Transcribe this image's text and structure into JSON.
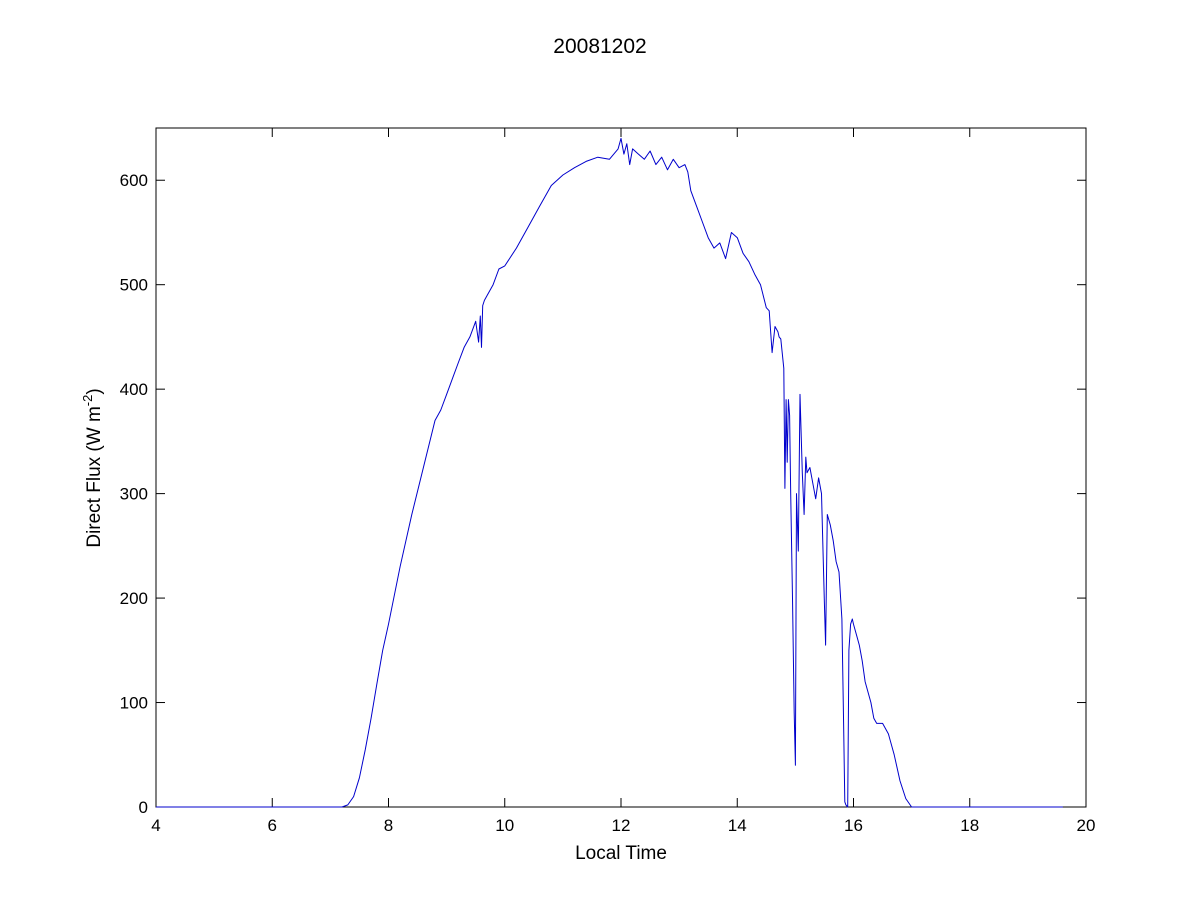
{
  "chart_data": {
    "type": "line",
    "title": "20081202",
    "xlabel": "Local Time",
    "ylabel": {
      "main": "Direct Flux (W m",
      "superscript": "-2",
      "close": ")"
    },
    "xlim": [
      4,
      20
    ],
    "ylim": [
      0,
      650
    ],
    "xticks": [
      4,
      6,
      8,
      10,
      12,
      14,
      16,
      18,
      20
    ],
    "yticks": [
      0,
      100,
      200,
      300,
      400,
      500,
      600
    ],
    "grid": false,
    "legend": "none",
    "series": [
      {
        "color": "#0000cc",
        "x": [
          4.0,
          4.2,
          4.4,
          4.6,
          4.8,
          5.0,
          5.2,
          5.4,
          5.6,
          5.8,
          6.0,
          6.2,
          6.4,
          6.6,
          6.8,
          7.0,
          7.1,
          7.2,
          7.3,
          7.4,
          7.5,
          7.6,
          7.7,
          7.8,
          7.9,
          8.0,
          8.2,
          8.4,
          8.6,
          8.8,
          8.9,
          9.0,
          9.1,
          9.2,
          9.3,
          9.4,
          9.5,
          9.55,
          9.58,
          9.6,
          9.62,
          9.65,
          9.7,
          9.8,
          9.9,
          10.0,
          10.2,
          10.4,
          10.6,
          10.8,
          11.0,
          11.2,
          11.4,
          11.6,
          11.8,
          11.95,
          12.0,
          12.05,
          12.1,
          12.15,
          12.2,
          12.3,
          12.4,
          12.5,
          12.6,
          12.7,
          12.8,
          12.9,
          13.0,
          13.1,
          13.15,
          13.2,
          13.3,
          13.4,
          13.5,
          13.6,
          13.7,
          13.8,
          13.9,
          14.0,
          14.1,
          14.2,
          14.3,
          14.4,
          14.5,
          14.55,
          14.6,
          14.65,
          14.7,
          14.72,
          14.75,
          14.8,
          14.82,
          14.84,
          14.86,
          14.88,
          14.9,
          14.92,
          14.95,
          14.98,
          15.0,
          15.02,
          15.05,
          15.08,
          15.12,
          15.15,
          15.18,
          15.2,
          15.25,
          15.3,
          15.35,
          15.4,
          15.45,
          15.5,
          15.52,
          15.55,
          15.6,
          15.65,
          15.7,
          15.75,
          15.8,
          15.83,
          15.85,
          15.87,
          15.9,
          15.92,
          15.95,
          15.98,
          16.0,
          16.05,
          16.1,
          16.15,
          16.2,
          16.3,
          16.35,
          16.4,
          16.5,
          16.6,
          16.7,
          16.8,
          16.9,
          17.0,
          17.2,
          17.5,
          18.0,
          18.5,
          19.0,
          19.5,
          19.6
        ],
        "y": [
          0,
          0,
          0,
          0,
          0,
          0,
          0,
          0,
          0,
          0,
          0,
          0,
          0,
          0,
          0,
          0,
          0,
          0,
          2,
          10,
          28,
          55,
          85,
          118,
          150,
          175,
          230,
          280,
          325,
          370,
          380,
          395,
          410,
          425,
          440,
          450,
          465,
          445,
          470,
          440,
          480,
          485,
          490,
          500,
          515,
          518,
          535,
          555,
          575,
          595,
          605,
          612,
          618,
          622,
          620,
          630,
          640,
          625,
          635,
          615,
          630,
          625,
          620,
          628,
          615,
          622,
          610,
          620,
          612,
          615,
          608,
          590,
          575,
          560,
          545,
          535,
          540,
          525,
          550,
          545,
          530,
          522,
          510,
          500,
          478,
          475,
          435,
          460,
          455,
          450,
          448,
          420,
          305,
          390,
          330,
          390,
          375,
          300,
          200,
          90,
          40,
          300,
          245,
          395,
          320,
          280,
          335,
          320,
          325,
          310,
          295,
          315,
          300,
          195,
          155,
          280,
          270,
          255,
          235,
          225,
          180,
          80,
          5,
          2,
          0,
          150,
          175,
          180,
          175,
          165,
          155,
          140,
          120,
          100,
          85,
          80,
          80,
          70,
          50,
          25,
          8,
          0,
          0,
          0,
          0,
          0,
          0,
          0,
          0
        ]
      }
    ]
  }
}
